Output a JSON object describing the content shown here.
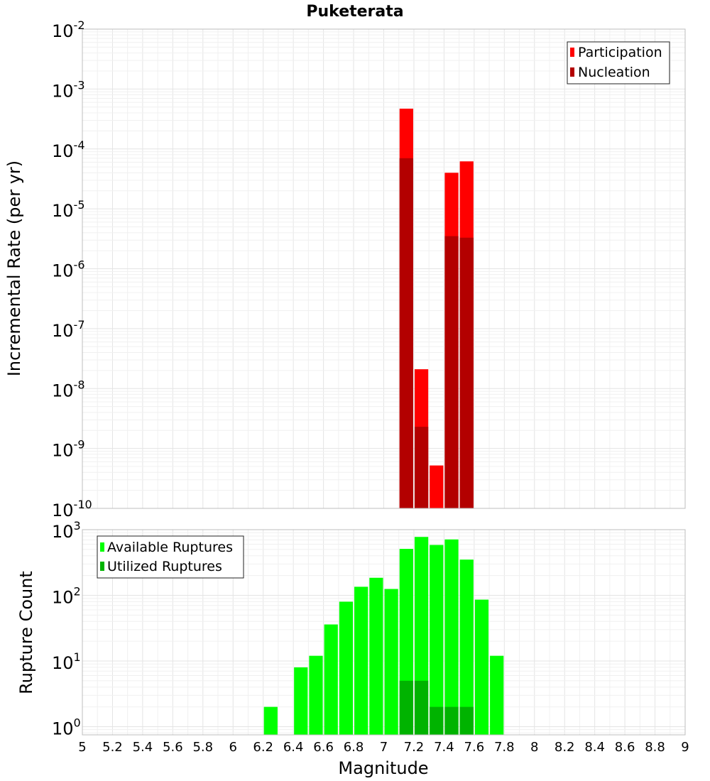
{
  "chart_data": [
    {
      "type": "bar",
      "title": "Puketerata",
      "xlabel": "",
      "ylabel": "Incremental Rate (per yr)",
      "yscale": "log",
      "ylim": [
        1e-10,
        0.01
      ],
      "xlim": [
        5,
        9
      ],
      "x": [
        7.15,
        7.25,
        7.35,
        7.45,
        7.55
      ],
      "series": [
        {
          "name": "Participation",
          "color": "#ff0000",
          "values": [
            0.00047,
            2.1e-08,
            5.2e-10,
            4e-05,
            6.2e-05
          ]
        },
        {
          "name": "Nucleation",
          "color": "#b30000",
          "values": [
            7e-05,
            2.3e-09,
            null,
            3.5e-06,
            3.3e-06
          ]
        }
      ],
      "y_ticks": [
        {
          "base": "10",
          "exp": "-2"
        },
        {
          "base": "10",
          "exp": "-3"
        },
        {
          "base": "10",
          "exp": "-4"
        },
        {
          "base": "10",
          "exp": "-5"
        },
        {
          "base": "10",
          "exp": "-6"
        },
        {
          "base": "10",
          "exp": "-7"
        },
        {
          "base": "10",
          "exp": "-8"
        },
        {
          "base": "10",
          "exp": "-9"
        },
        {
          "base": "10",
          "exp": "-10"
        }
      ],
      "legend_position": "top-right",
      "grid": true
    },
    {
      "type": "bar",
      "title": "",
      "xlabel": "Magnitude",
      "ylabel": "Rupture Count",
      "yscale": "log",
      "ylim": [
        0.75,
        1000
      ],
      "xlim": [
        5,
        9
      ],
      "x": [
        6.25,
        6.45,
        6.55,
        6.65,
        6.75,
        6.85,
        6.95,
        7.05,
        7.15,
        7.25,
        7.35,
        7.45,
        7.55,
        7.65,
        7.75
      ],
      "series": [
        {
          "name": "Available Ruptures",
          "color": "#00ff00",
          "values": [
            2,
            8,
            12,
            36,
            80,
            135,
            185,
            125,
            510,
            775,
            585,
            710,
            350,
            86,
            12
          ]
        },
        {
          "name": "Utilized Ruptures",
          "color": "#00b300",
          "values": [
            null,
            null,
            null,
            null,
            null,
            null,
            null,
            null,
            5,
            5,
            2,
            2,
            2,
            null,
            null
          ]
        }
      ],
      "y_ticks": [
        {
          "base": "10",
          "exp": "3"
        },
        {
          "base": "10",
          "exp": "2"
        },
        {
          "base": "10",
          "exp": "1"
        },
        {
          "base": "10",
          "exp": "0"
        }
      ],
      "x_ticks": [
        "5",
        "5.2",
        "5.4",
        "5.6",
        "5.8",
        "6",
        "6.2",
        "6.4",
        "6.6",
        "6.8",
        "7",
        "7.2",
        "7.4",
        "7.6",
        "7.8",
        "8",
        "8.2",
        "8.4",
        "8.6",
        "8.8",
        "9"
      ],
      "legend_position": "top-left",
      "grid": true
    }
  ]
}
